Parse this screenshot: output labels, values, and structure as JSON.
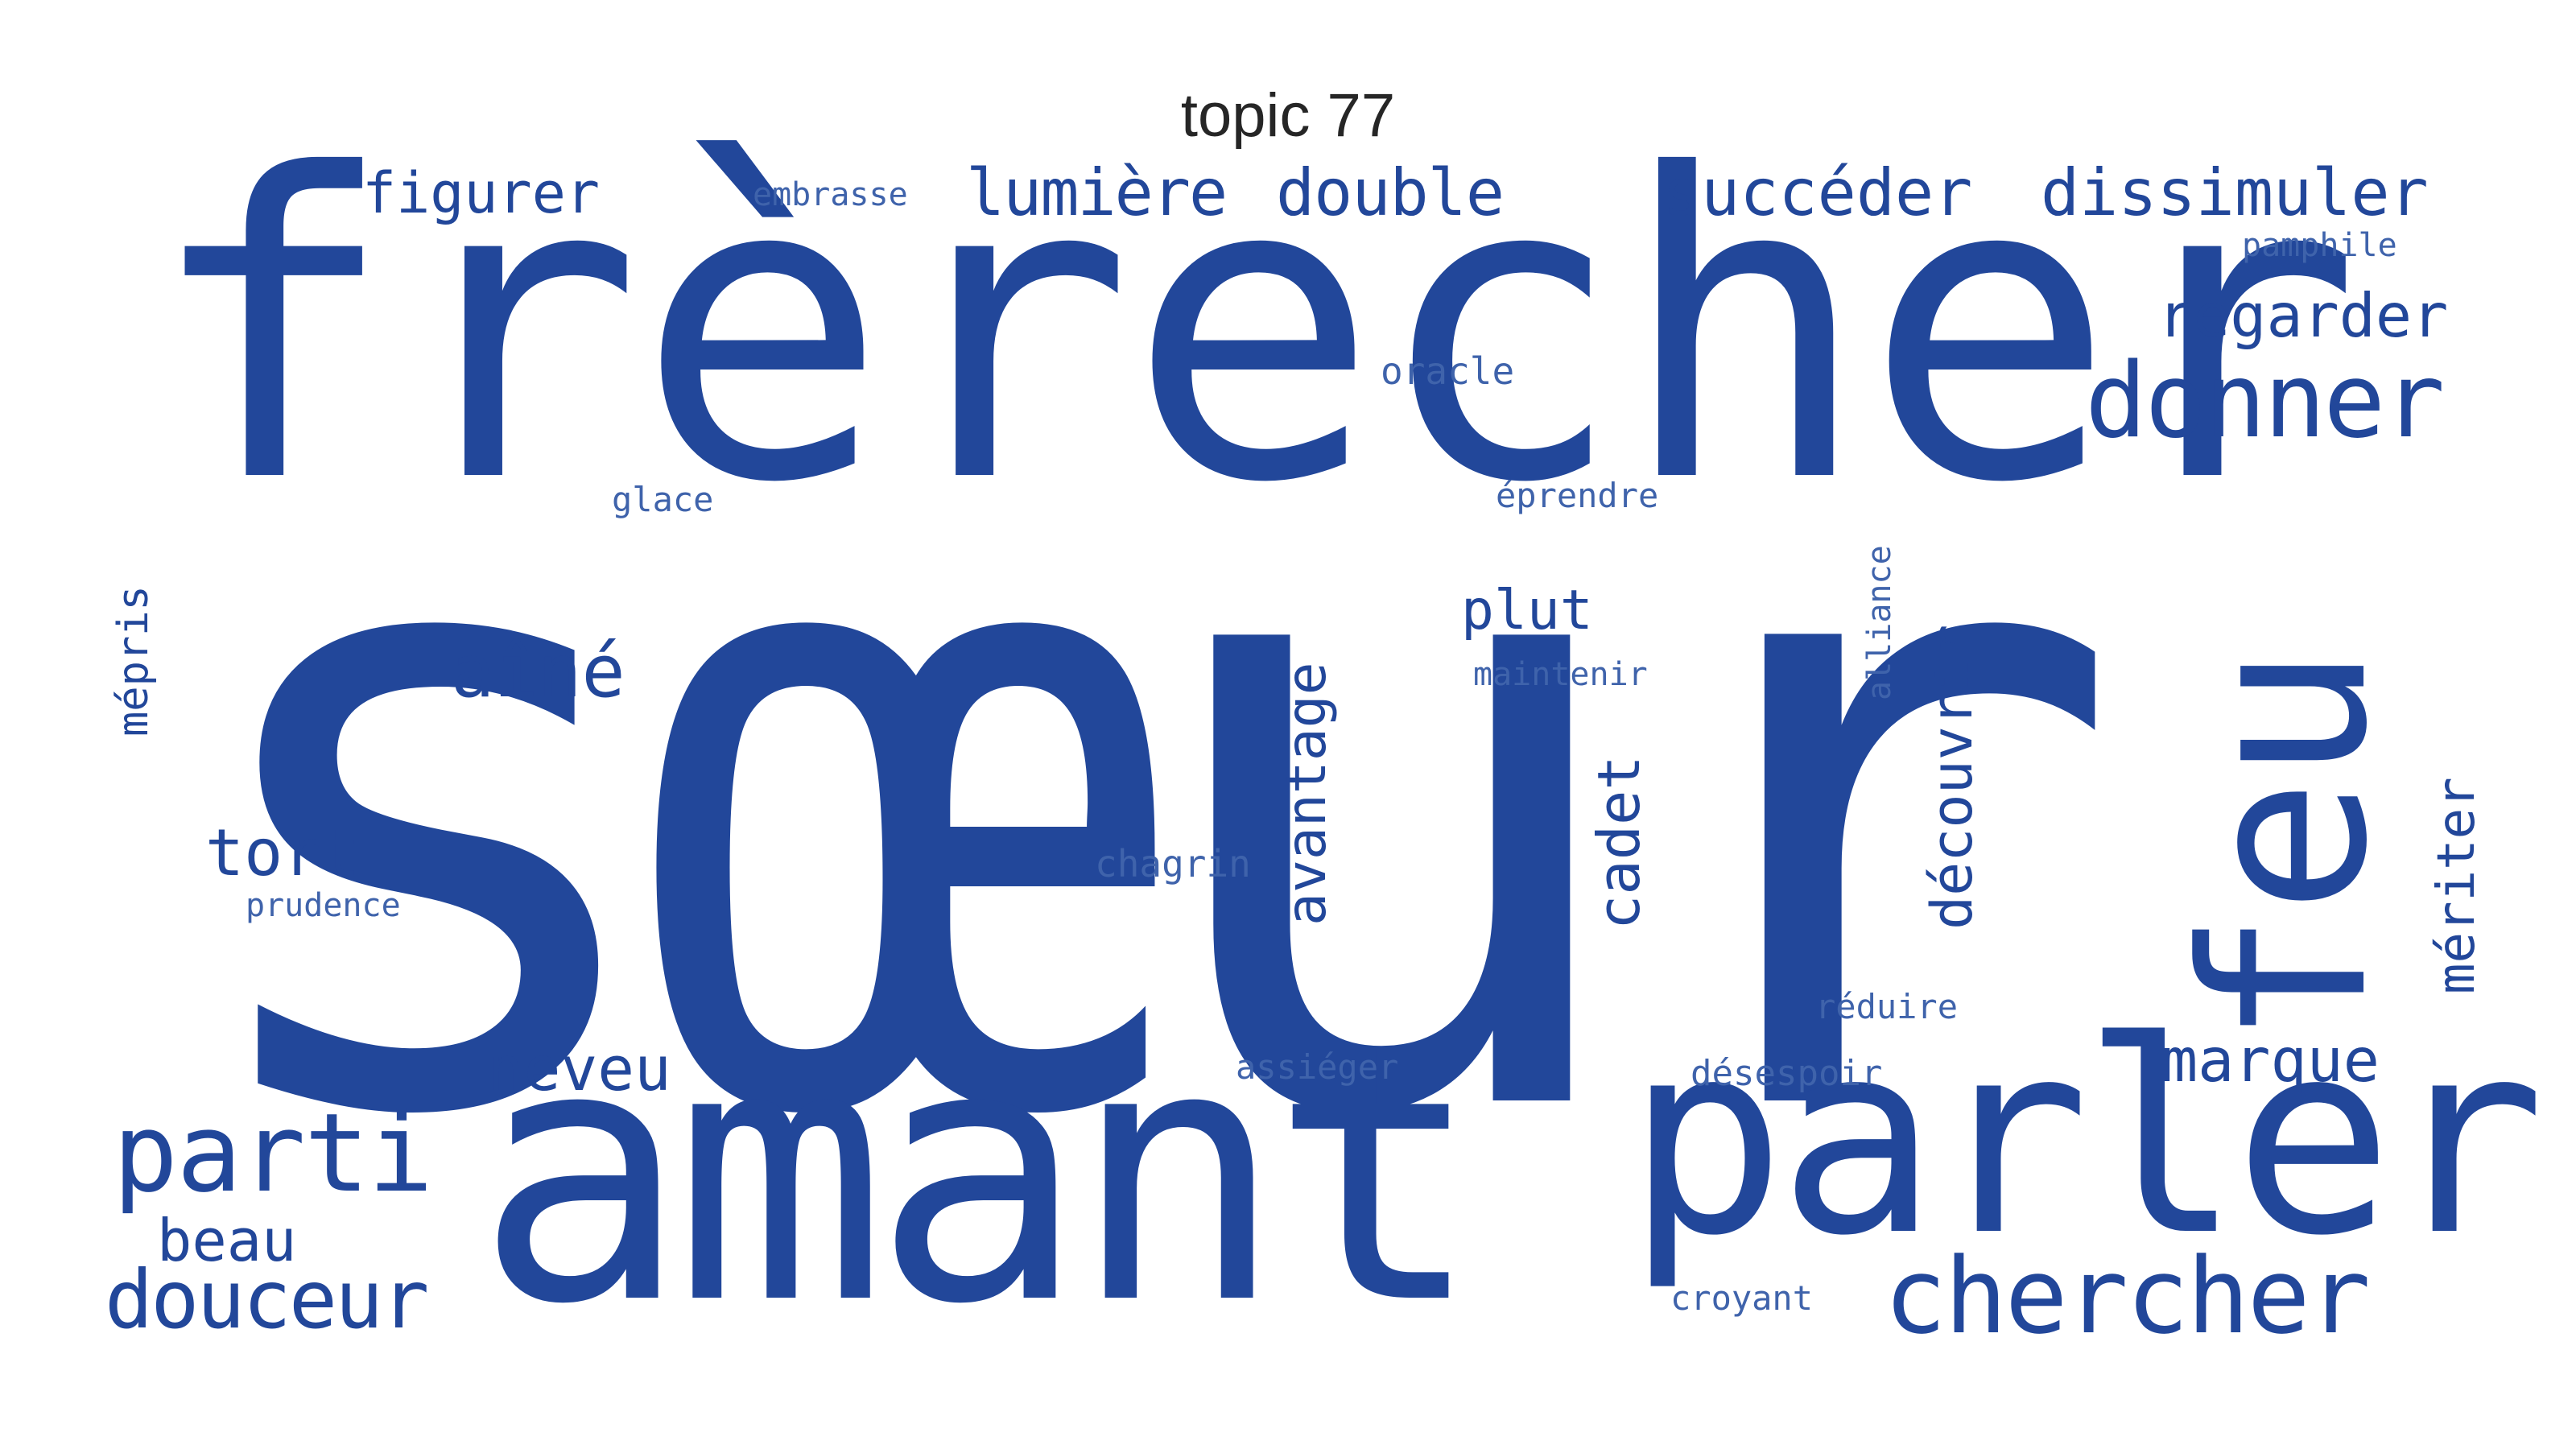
{
  "title": "topic 77",
  "color": "#22479a",
  "words": {
    "soeur": "sœur",
    "frerecher": "frèrecher",
    "amant": "amant",
    "parler": "parler",
    "feu": "feu",
    "donner": "donner",
    "chercher": "chercher",
    "parti": "parti",
    "douceur": "douceur",
    "aine": "aîné",
    "succeder": "succéder",
    "dissimuler": "dissimuler",
    "lumiere": "lumière",
    "double": "double",
    "figurer": "figurer",
    "regarder": "regarder",
    "neveu": "neveu",
    "marque": "marque",
    "tort": "tort",
    "beau": "beau",
    "avantage": "avantage",
    "decouvrir": "découvrir",
    "cadet": "cadet",
    "meriter": "mériter",
    "mepris": "mépris",
    "plut": "plut",
    "embrasse": "embrasse",
    "pamphile": "pamphile",
    "oracle": "oracle",
    "glace": "glace",
    "eprendre": "éprendre",
    "maintenir": "maintenir",
    "alliance": "alliance",
    "chagrin": "chagrin",
    "prudence": "prudence",
    "reduire": "réduire",
    "assieger": "assiéger",
    "desespoir": "désespoir",
    "croyant": "croyant"
  }
}
